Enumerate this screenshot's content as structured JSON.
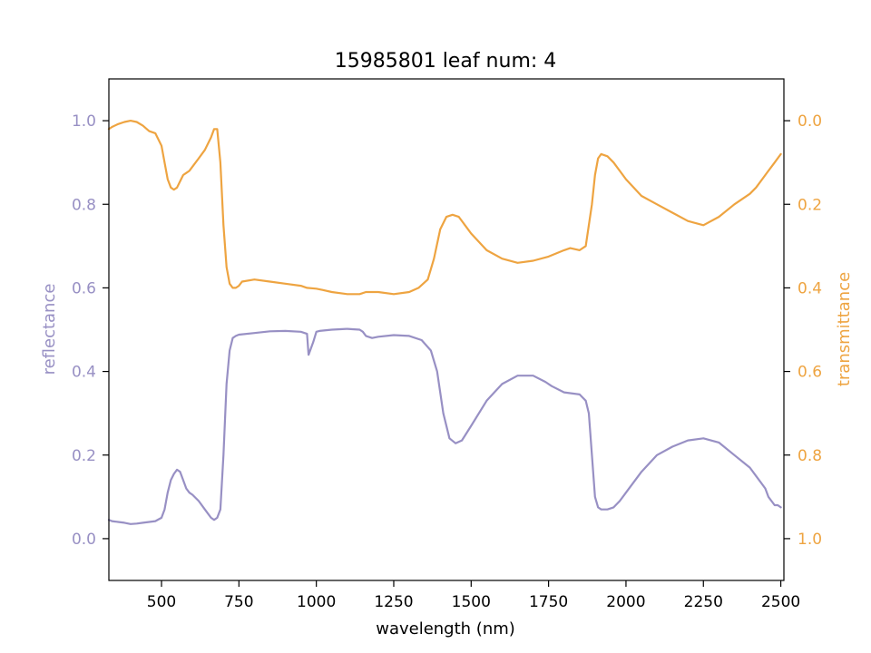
{
  "chart_data": {
    "type": "line",
    "title": "15985801 leaf num: 4",
    "xlabel": "wavelength (nm)",
    "xlim": [
      330,
      2510
    ],
    "xticks": [
      500,
      750,
      1000,
      1250,
      1500,
      1750,
      2000,
      2250,
      2500
    ],
    "left_axis": {
      "label": "reflectance",
      "lim": [
        -0.1,
        1.1
      ],
      "ticks": [
        0.0,
        0.2,
        0.4,
        0.6,
        0.8,
        1.0
      ],
      "tick_labels": [
        "0.0",
        "0.2",
        "0.4",
        "0.6",
        "0.8",
        "1.0"
      ],
      "color": "#9890c4"
    },
    "right_axis": {
      "label": "transmittance",
      "lim": [
        1.1,
        -0.1
      ],
      "inverted": true,
      "ticks": [
        0.0,
        0.2,
        0.4,
        0.6,
        0.8,
        1.0
      ],
      "tick_labels": [
        "0.0",
        "0.2",
        "0.4",
        "0.6",
        "0.8",
        "1.0"
      ],
      "color": "#eea441"
    },
    "grid": false,
    "series": [
      {
        "axis": "left",
        "color": "#9890c4",
        "x": [
          330,
          340,
          360,
          380,
          400,
          420,
          440,
          460,
          480,
          500,
          510,
          520,
          530,
          540,
          550,
          560,
          570,
          580,
          590,
          600,
          620,
          640,
          660,
          670,
          680,
          690,
          700,
          710,
          720,
          730,
          740,
          750,
          800,
          850,
          900,
          950,
          970,
          975,
          990,
          1000,
          1010,
          1050,
          1100,
          1140,
          1150,
          1160,
          1180,
          1200,
          1250,
          1300,
          1340,
          1370,
          1390,
          1410,
          1430,
          1450,
          1470,
          1500,
          1550,
          1600,
          1650,
          1700,
          1740,
          1760,
          1800,
          1850,
          1870,
          1880,
          1890,
          1900,
          1910,
          1920,
          1940,
          1960,
          1980,
          2000,
          2050,
          2100,
          2150,
          2200,
          2250,
          2300,
          2350,
          2400,
          2420,
          2440,
          2450,
          2460,
          2470,
          2480,
          2490,
          2500
        ],
        "y": [
          0.045,
          0.042,
          0.04,
          0.038,
          0.035,
          0.036,
          0.038,
          0.04,
          0.042,
          0.05,
          0.07,
          0.11,
          0.14,
          0.155,
          0.165,
          0.16,
          0.14,
          0.12,
          0.11,
          0.105,
          0.09,
          0.07,
          0.05,
          0.045,
          0.05,
          0.07,
          0.2,
          0.37,
          0.45,
          0.48,
          0.485,
          0.488,
          0.492,
          0.496,
          0.497,
          0.495,
          0.49,
          0.44,
          0.47,
          0.495,
          0.497,
          0.5,
          0.502,
          0.5,
          0.495,
          0.485,
          0.48,
          0.483,
          0.487,
          0.485,
          0.475,
          0.45,
          0.4,
          0.3,
          0.24,
          0.228,
          0.235,
          0.27,
          0.33,
          0.37,
          0.39,
          0.39,
          0.375,
          0.365,
          0.35,
          0.345,
          0.33,
          0.3,
          0.2,
          0.1,
          0.075,
          0.07,
          0.07,
          0.075,
          0.09,
          0.11,
          0.16,
          0.2,
          0.22,
          0.235,
          0.24,
          0.23,
          0.2,
          0.17,
          0.15,
          0.13,
          0.12,
          0.1,
          0.09,
          0.08,
          0.08,
          0.075
        ]
      },
      {
        "axis": "right",
        "color": "#eea441",
        "x": [
          330,
          340,
          360,
          380,
          400,
          420,
          440,
          460,
          480,
          500,
          510,
          520,
          530,
          540,
          550,
          560,
          570,
          580,
          590,
          600,
          620,
          640,
          660,
          670,
          680,
          690,
          700,
          710,
          720,
          730,
          740,
          750,
          760,
          800,
          850,
          900,
          950,
          970,
          1000,
          1020,
          1050,
          1100,
          1140,
          1160,
          1200,
          1250,
          1300,
          1330,
          1360,
          1380,
          1400,
          1420,
          1440,
          1460,
          1480,
          1500,
          1550,
          1600,
          1650,
          1700,
          1750,
          1800,
          1820,
          1850,
          1870,
          1880,
          1890,
          1900,
          1910,
          1920,
          1940,
          1960,
          1980,
          2000,
          2050,
          2100,
          2150,
          2200,
          2250,
          2300,
          2350,
          2400,
          2420,
          2440,
          2460,
          2480,
          2500
        ],
        "y": [
          0.02,
          0.015,
          0.008,
          0.003,
          0.0,
          0.003,
          0.012,
          0.025,
          0.03,
          0.06,
          0.1,
          0.14,
          0.16,
          0.165,
          0.16,
          0.145,
          0.13,
          0.125,
          0.12,
          0.11,
          0.09,
          0.07,
          0.04,
          0.02,
          0.02,
          0.1,
          0.25,
          0.35,
          0.39,
          0.4,
          0.4,
          0.395,
          0.385,
          0.38,
          0.385,
          0.39,
          0.395,
          0.4,
          0.402,
          0.405,
          0.41,
          0.415,
          0.415,
          0.41,
          0.41,
          0.415,
          0.41,
          0.4,
          0.38,
          0.33,
          0.26,
          0.23,
          0.225,
          0.23,
          0.25,
          0.27,
          0.31,
          0.33,
          0.34,
          0.335,
          0.325,
          0.31,
          0.305,
          0.31,
          0.3,
          0.25,
          0.2,
          0.13,
          0.09,
          0.08,
          0.085,
          0.1,
          0.12,
          0.14,
          0.18,
          0.2,
          0.22,
          0.24,
          0.25,
          0.23,
          0.2,
          0.175,
          0.16,
          0.14,
          0.12,
          0.1,
          0.08
        ]
      }
    ]
  }
}
